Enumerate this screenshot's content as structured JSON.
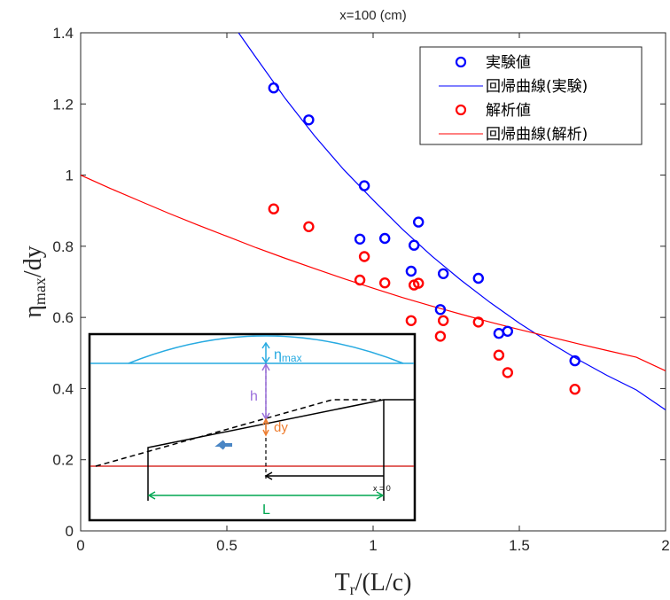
{
  "chart_data": {
    "type": "scatter",
    "title": "x=100 (cm)",
    "xlabel": {
      "main": "T",
      "sub": "r",
      "rest": "/(L/c)"
    },
    "ylabel": {
      "main": "η",
      "sub": "max",
      "rest": "/dy"
    },
    "xlim": [
      0,
      2
    ],
    "ylim": [
      0,
      1.4
    ],
    "xticks": [
      0,
      0.5,
      1,
      1.5,
      2
    ],
    "xtick_labels": [
      "0",
      "0.5",
      "1",
      "1.5",
      "2"
    ],
    "yticks": [
      0,
      0.2,
      0.4,
      0.6,
      0.8,
      1,
      1.2,
      1.4
    ],
    "ytick_labels": [
      "0",
      "0.2",
      "0.4",
      "0.6",
      "0.8",
      "1",
      "1.2",
      "1.4"
    ],
    "grid": false,
    "legend_position": "top-right",
    "series": [
      {
        "name": "実験値",
        "kind": "markers",
        "color": "#0000ff",
        "points": [
          [
            0.66,
            1.245
          ],
          [
            0.78,
            1.155
          ],
          [
            0.97,
            0.97
          ],
          [
            0.955,
            0.82
          ],
          [
            1.04,
            0.822
          ],
          [
            1.155,
            0.868
          ],
          [
            1.14,
            0.803
          ],
          [
            1.13,
            0.73
          ],
          [
            1.24,
            0.723
          ],
          [
            1.36,
            0.71
          ],
          [
            1.23,
            0.622
          ],
          [
            1.43,
            0.555
          ],
          [
            1.46,
            0.561
          ],
          [
            1.69,
            0.478
          ]
        ]
      },
      {
        "name": "回帰曲線(実験)",
        "kind": "line",
        "color": "#0000ff",
        "x": [
          0.54,
          0.6,
          0.7,
          0.8,
          0.9,
          1.0,
          1.1,
          1.2,
          1.3,
          1.4,
          1.5,
          1.6,
          1.7,
          1.8,
          1.9,
          2.0
        ],
        "y": [
          1.4,
          1.33,
          1.215,
          1.11,
          1.015,
          0.93,
          0.848,
          0.773,
          0.705,
          0.642,
          0.584,
          0.531,
          0.482,
          0.437,
          0.396,
          0.34
        ]
      },
      {
        "name": "解析値",
        "kind": "markers",
        "color": "#ff0000",
        "points": [
          [
            0.66,
            0.905
          ],
          [
            0.78,
            0.855
          ],
          [
            0.955,
            0.705
          ],
          [
            0.97,
            0.771
          ],
          [
            1.04,
            0.697
          ],
          [
            1.14,
            0.691
          ],
          [
            1.155,
            0.696
          ],
          [
            1.13,
            0.591
          ],
          [
            1.24,
            0.591
          ],
          [
            1.23,
            0.547
          ],
          [
            1.36,
            0.587
          ],
          [
            1.43,
            0.494
          ],
          [
            1.46,
            0.445
          ],
          [
            1.69,
            0.398
          ]
        ]
      },
      {
        "name": "回帰曲線(解析)",
        "kind": "line",
        "color": "#ff0000",
        "x": [
          0,
          0.1,
          0.2,
          0.3,
          0.4,
          0.5,
          0.6,
          0.7,
          0.8,
          0.9,
          1.0,
          1.1,
          1.2,
          1.3,
          1.4,
          1.5,
          1.6,
          1.7,
          1.8,
          1.9,
          2.0
        ],
        "y": [
          1.0,
          0.963,
          0.928,
          0.893,
          0.86,
          0.828,
          0.796,
          0.766,
          0.737,
          0.709,
          0.682,
          0.656,
          0.632,
          0.609,
          0.587,
          0.566,
          0.546,
          0.526,
          0.507,
          0.488,
          0.45
        ]
      }
    ],
    "inset": {
      "labels": {
        "eta": "η",
        "eta_sub": "max",
        "h": "h",
        "dy": "dy",
        "x0": "x = 0",
        "L": "L"
      },
      "colors": {
        "eta": "#27aae1",
        "h": "#9b6fdc",
        "dy": "#ee7d2f",
        "L": "#00a651",
        "bed": "#d9312c",
        "arrow": "#4a86c5"
      }
    }
  }
}
